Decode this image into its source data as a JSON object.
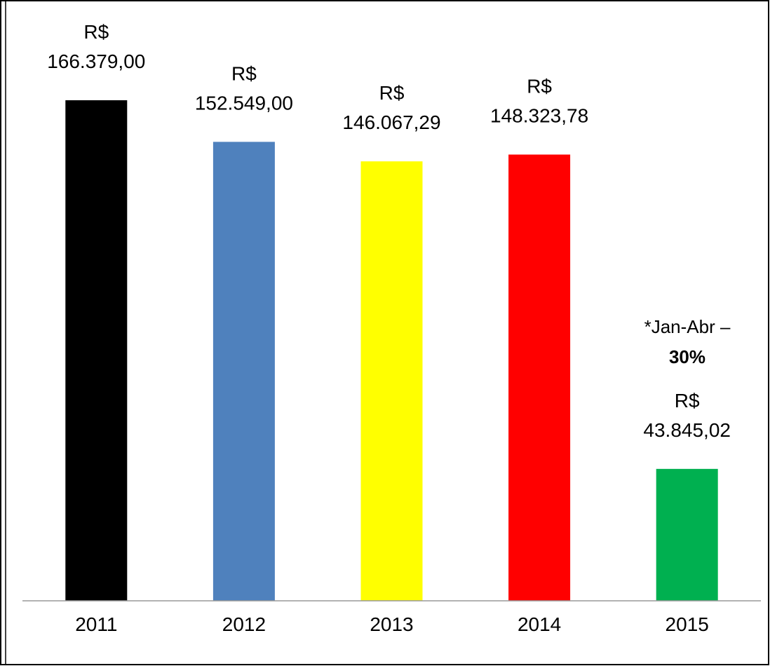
{
  "chart_data": {
    "type": "bar",
    "categories": [
      "2011",
      "2012",
      "2013",
      "2014",
      "2015"
    ],
    "values": [
      166379.0,
      152549.0,
      146067.29,
      148323.78,
      43845.02
    ],
    "value_labels": [
      "R$ 166.379,00",
      "R$ 152.549,00",
      "R$ 146.067,29",
      "R$ 148.323,78",
      "R$ 43.845,02"
    ],
    "colors": [
      "#000000",
      "#4f81bd",
      "#ffff00",
      "#ff0000",
      "#00b050"
    ],
    "annotation": {
      "text": "*Jan-Abr –",
      "highlight": "30%",
      "highlight_color": "#ff0000"
    }
  }
}
